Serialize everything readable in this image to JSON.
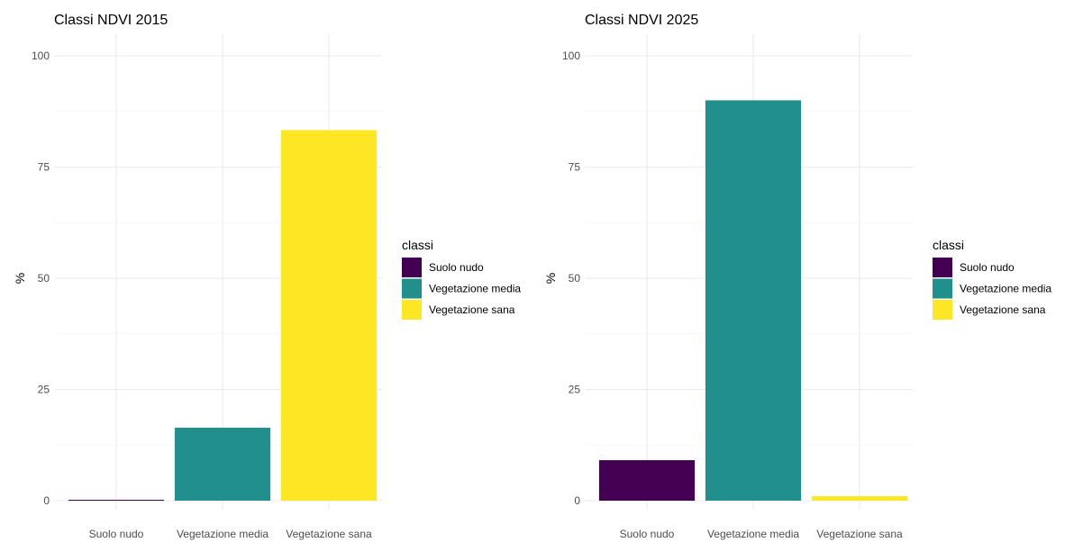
{
  "chart_data": [
    {
      "type": "bar",
      "title": "Classi NDVI 2015",
      "xlabel": "",
      "ylabel": "%",
      "ylim": [
        0,
        100
      ],
      "yticks": [
        0,
        25,
        50,
        75,
        100
      ],
      "grid": true,
      "categories": [
        "Suolo nudo",
        "Vegetazione media",
        "Vegetazione sana"
      ],
      "values": [
        0.2,
        16.4,
        83.3
      ],
      "colors": [
        "#440154",
        "#21908C",
        "#FDE725"
      ],
      "legend": {
        "title": "classi",
        "position": "right",
        "entries": [
          "Suolo nudo",
          "Vegetazione media",
          "Vegetazione sana"
        ]
      }
    },
    {
      "type": "bar",
      "title": "Classi NDVI 2025",
      "xlabel": "",
      "ylabel": "%",
      "ylim": [
        0,
        100
      ],
      "yticks": [
        0,
        25,
        50,
        75,
        100
      ],
      "grid": true,
      "categories": [
        "Suolo nudo",
        "Vegetazione media",
        "Vegetazione sana"
      ],
      "values": [
        9.1,
        90.0,
        1.0
      ],
      "colors": [
        "#440154",
        "#21908C",
        "#FDE725"
      ],
      "legend": {
        "title": "classi",
        "position": "right",
        "entries": [
          "Suolo nudo",
          "Vegetazione media",
          "Vegetazione sana"
        ]
      }
    }
  ]
}
